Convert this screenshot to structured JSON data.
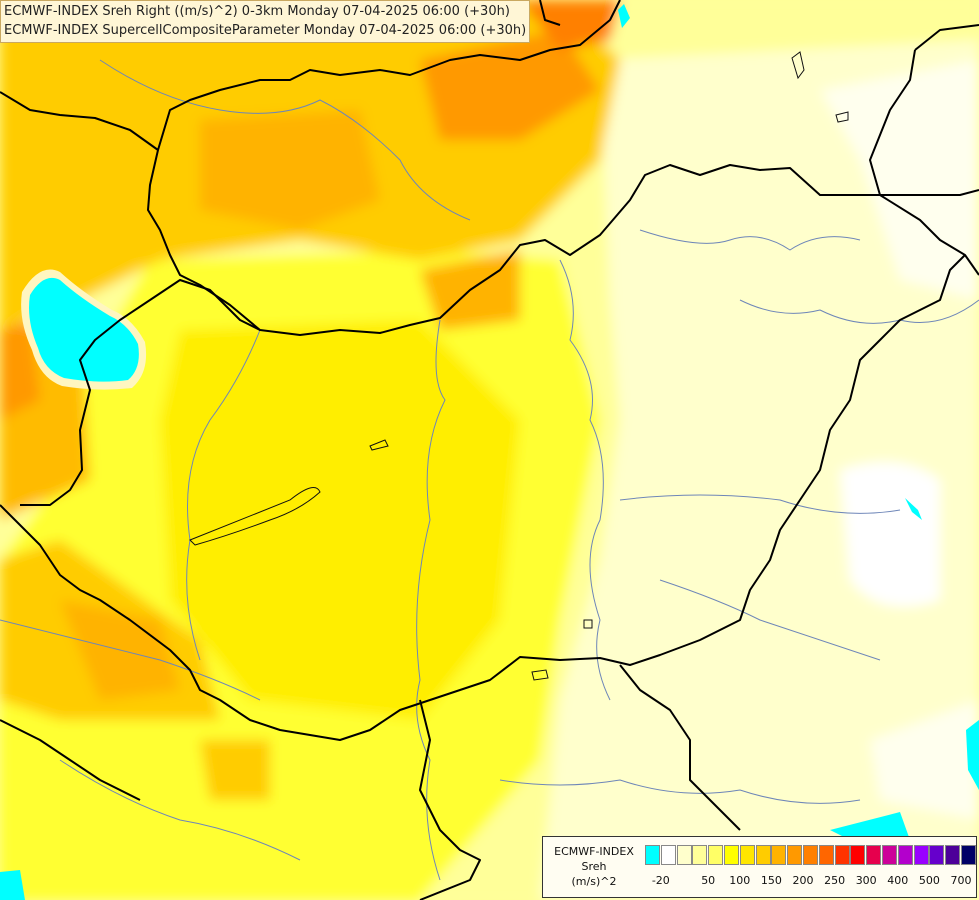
{
  "header": {
    "line1": "ECMWF-INDEX Sreh Right ((m/s)^2) 0-3km Monday 07-04-2025 06:00 (+30h)",
    "line2": "ECMWF-INDEX SupercellCompositeParameter Monday 07-04-2025 06:00 (+30h)"
  },
  "legend": {
    "line1": "ECMWF-INDEX",
    "line2": "Sreh",
    "line3": "(m/s)^2",
    "colors": [
      "#00ffff",
      "#ffffff",
      "#ffffcc",
      "#ffff99",
      "#ffff66",
      "#ffff00",
      "#ffe600",
      "#ffcc00",
      "#ffb300",
      "#ff9900",
      "#ff8000",
      "#ff6600",
      "#ff3300",
      "#ff0000",
      "#e6004d",
      "#cc0099",
      "#b300cc",
      "#9900ff",
      "#6600cc",
      "#4d0099",
      "#000066"
    ],
    "ticks": [
      "-20",
      "50",
      "100",
      "150",
      "200",
      "250",
      "300",
      "400",
      "500",
      "700"
    ]
  }
}
